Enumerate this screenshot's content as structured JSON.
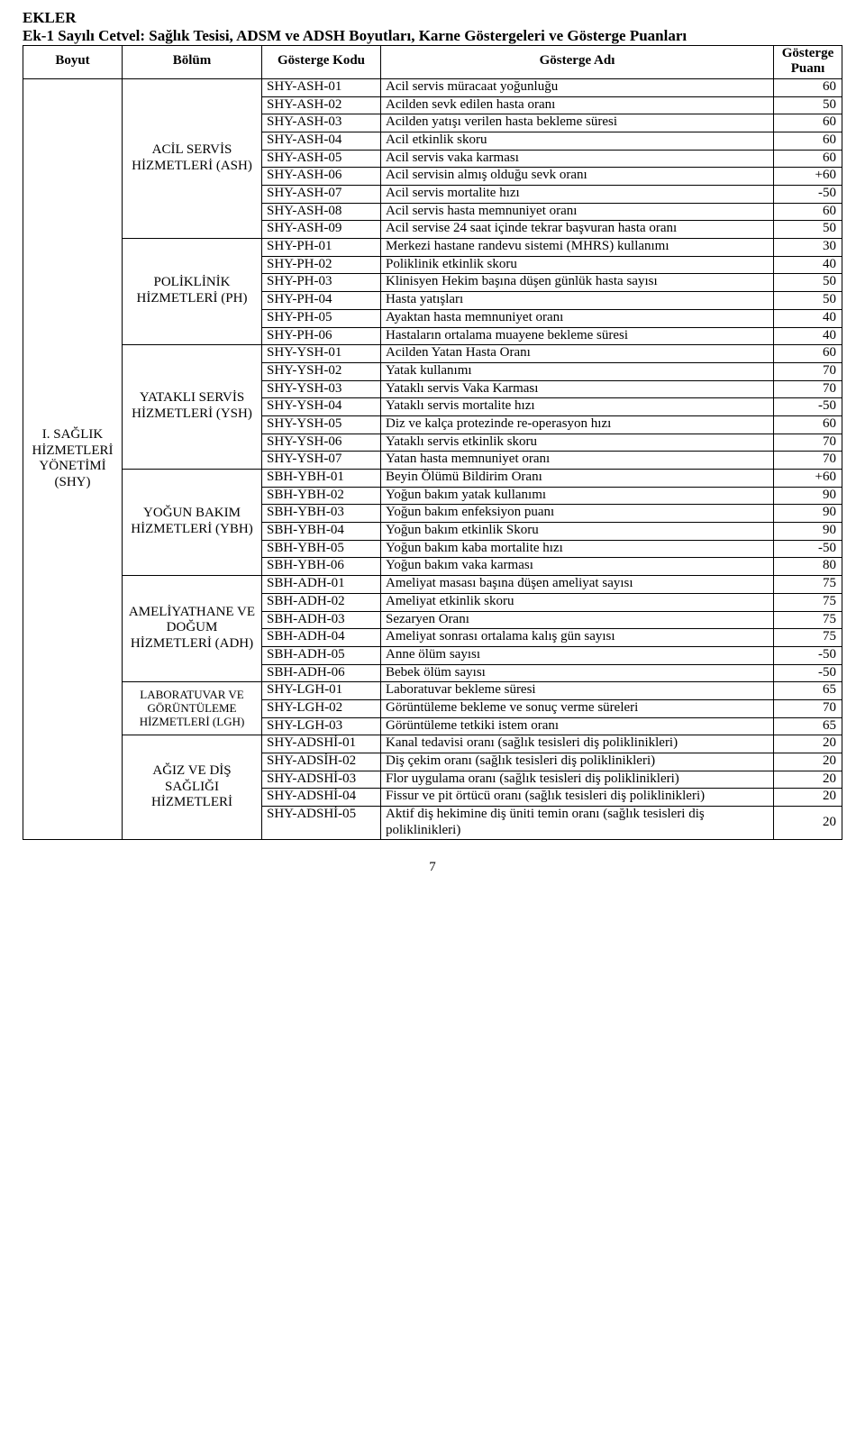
{
  "heading": "EKLER",
  "subtitle": "Ek-1 Sayılı Cetvel: Sağlık Tesisi, ADSM ve ADSH Boyutları, Karne Göstergeleri ve Gösterge Puanları",
  "columns": {
    "boyut": "Boyut",
    "bolum": "Bölüm",
    "kod": "Gösterge Kodu",
    "adi": "Gösterge Adı",
    "puan": "Gösterge Puanı"
  },
  "boyut": {
    "label": "I. SAĞLIK HİZMETLERİ YÖNETİMİ (SHY)"
  },
  "sections": [
    {
      "label": "ACİL SERVİS HİZMETLERİ (ASH)",
      "rows": [
        {
          "kod": "SHY-ASH-01",
          "adi": "Acil servis müracaat yoğunluğu",
          "puan": "60"
        },
        {
          "kod": "SHY-ASH-02",
          "adi": "Acilden sevk edilen hasta oranı",
          "puan": "50"
        },
        {
          "kod": "SHY-ASH-03",
          "adi": "Acilden yatışı verilen hasta bekleme süresi",
          "puan": "60"
        },
        {
          "kod": "SHY-ASH-04",
          "adi": "Acil etkinlik skoru",
          "puan": "60"
        },
        {
          "kod": "SHY-ASH-05",
          "adi": "Acil servis vaka karması",
          "puan": "60"
        },
        {
          "kod": "SHY-ASH-06",
          "adi": "Acil servisin almış olduğu sevk oranı",
          "puan": "+60"
        },
        {
          "kod": "SHY-ASH-07",
          "adi": "Acil servis mortalite hızı",
          "puan": "-50"
        },
        {
          "kod": "SHY-ASH-08",
          "adi": "Acil servis hasta memnuniyet oranı",
          "puan": "60"
        },
        {
          "kod": "SHY-ASH-09",
          "adi": "Acil servise 24 saat içinde tekrar başvuran hasta oranı",
          "puan": "50"
        }
      ]
    },
    {
      "label": "POLİKLİNİK HİZMETLERİ (PH)",
      "rows": [
        {
          "kod": "SHY-PH-01",
          "adi": "Merkezi hastane randevu sistemi (MHRS) kullanımı",
          "puan": "30"
        },
        {
          "kod": "SHY-PH-02",
          "adi": "Poliklinik etkinlik skoru",
          "puan": "40"
        },
        {
          "kod": "SHY-PH-03",
          "adi": "Klinisyen Hekim başına düşen günlük hasta sayısı",
          "puan": "50"
        },
        {
          "kod": "SHY-PH-04",
          "adi": "Hasta yatışları",
          "puan": "50"
        },
        {
          "kod": "SHY-PH-05",
          "adi": "Ayaktan hasta memnuniyet oranı",
          "puan": "40"
        },
        {
          "kod": "SHY-PH-06",
          "adi": "Hastaların ortalama muayene bekleme süresi",
          "puan": "40"
        }
      ]
    },
    {
      "label": "YATAKLI SERVİS HİZMETLERİ (YSH)",
      "rows": [
        {
          "kod": "SHY-YSH-01",
          "adi": "Acilden Yatan Hasta Oranı",
          "puan": "60"
        },
        {
          "kod": "SHY-YSH-02",
          "adi": "Yatak kullanımı",
          "puan": "70"
        },
        {
          "kod": "SHY-YSH-03",
          "adi": "Yataklı servis Vaka Karması",
          "puan": "70"
        },
        {
          "kod": "SHY-YSH-04",
          "adi": "Yataklı servis mortalite hızı",
          "puan": "-50"
        },
        {
          "kod": "SHY-YSH-05",
          "adi": "Diz ve kalça protezinde re-operasyon hızı",
          "puan": "60"
        },
        {
          "kod": "SHY-YSH-06",
          "adi": "Yataklı servis etkinlik skoru",
          "puan": "70"
        },
        {
          "kod": "SHY-YSH-07",
          "adi": "Yatan hasta memnuniyet oranı",
          "puan": "70"
        }
      ]
    },
    {
      "label": "YOĞUN BAKIM HİZMETLERİ (YBH)",
      "rows": [
        {
          "kod": "SBH-YBH-01",
          "adi": "Beyin Ölümü Bildirim Oranı",
          "puan": "+60"
        },
        {
          "kod": "SBH-YBH-02",
          "adi": "Yoğun bakım yatak kullanımı",
          "puan": "90"
        },
        {
          "kod": "SBH-YBH-03",
          "adi": "Yoğun bakım enfeksiyon puanı",
          "puan": "90"
        },
        {
          "kod": "SBH-YBH-04",
          "adi": "Yoğun bakım etkinlik Skoru",
          "puan": "90"
        },
        {
          "kod": "SBH-YBH-05",
          "adi": "Yoğun bakım kaba mortalite hızı",
          "puan": "-50"
        },
        {
          "kod": "SBH-YBH-06",
          "adi": "Yoğun bakım  vaka karması",
          "puan": "80"
        }
      ]
    },
    {
      "label": "AMELİYATHANE VE DOĞUM HİZMETLERİ (ADH)",
      "rows": [
        {
          "kod": "SBH-ADH-01",
          "adi": "Ameliyat masası başına düşen ameliyat sayısı",
          "puan": "75"
        },
        {
          "kod": "SBH-ADH-02",
          "adi": "Ameliyat etkinlik skoru",
          "puan": "75"
        },
        {
          "kod": "SBH-ADH-03",
          "adi": "Sezaryen Oranı",
          "puan": "75"
        },
        {
          "kod": "SBH-ADH-04",
          "adi": "Ameliyat sonrası ortalama kalış gün sayısı",
          "puan": "75"
        },
        {
          "kod": "SBH-ADH-05",
          "adi": "Anne ölüm sayısı",
          "puan": "-50"
        },
        {
          "kod": "SBH-ADH-06",
          "adi": "Bebek ölüm sayısı",
          "puan": "-50"
        }
      ]
    },
    {
      "label": "LABORATUVAR VE GÖRÜNTÜLEME HİZMETLERİ (LGH)",
      "rows": [
        {
          "kod": "SHY-LGH-01",
          "adi": "Laboratuvar bekleme süresi",
          "puan": "65"
        },
        {
          "kod": "SHY-LGH-02",
          "adi": "Görüntüleme bekleme ve sonuç verme süreleri",
          "puan": "70"
        },
        {
          "kod": "SHY-LGH-03",
          "adi": "Görüntüleme tetkiki istem oranı",
          "puan": "65"
        }
      ]
    },
    {
      "label": "AĞIZ VE DİŞ SAĞLIĞI HİZMETLERİ",
      "rows": [
        {
          "kod": "SHY-ADSHİ-01",
          "adi": "Kanal tedavisi oranı (sağlık tesisleri diş poliklinikleri)",
          "puan": "20"
        },
        {
          "kod": "SHY-ADSİH-02",
          "adi": "Diş çekim oranı (sağlık tesisleri diş poliklinikleri)",
          "puan": "20"
        },
        {
          "kod": "SHY-ADSHİ-03",
          "adi": "Flor uygulama oranı (sağlık tesisleri diş poliklinikleri)",
          "puan": "20"
        },
        {
          "kod": "SHY-ADSHİ-04",
          "adi": "Fissur ve pit örtücü oranı (sağlık tesisleri diş poliklinikleri)",
          "puan": "20"
        },
        {
          "kod": "SHY-ADSHİ-05",
          "adi": "Aktif diş hekimine diş üniti temin oranı (sağlık tesisleri diş poliklinikleri)",
          "puan": "20"
        }
      ]
    }
  ],
  "page_number": "7"
}
